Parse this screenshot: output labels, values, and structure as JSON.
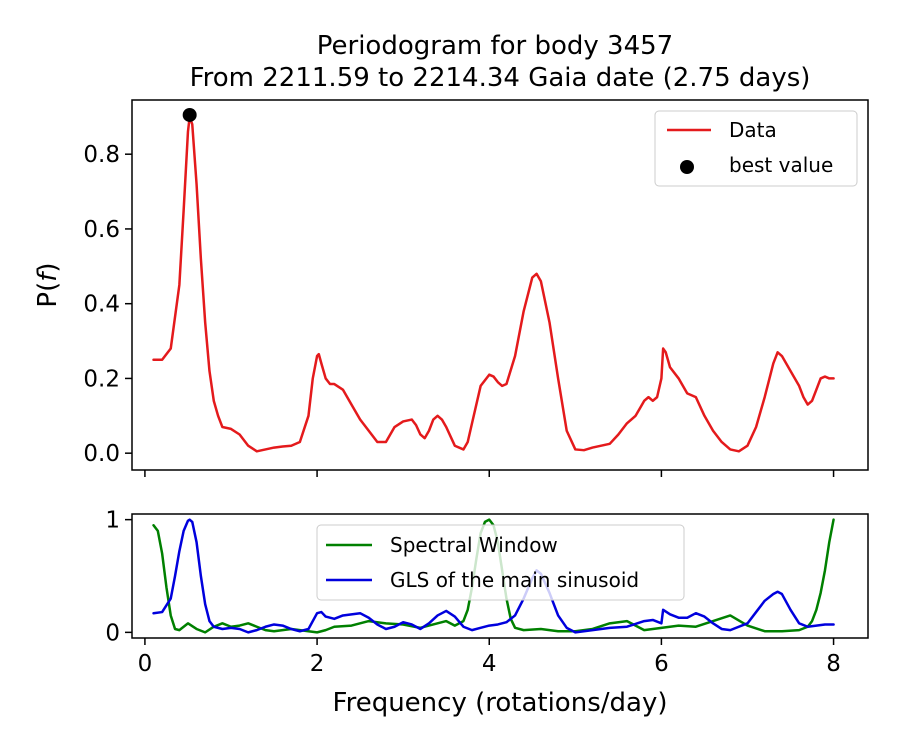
{
  "chart_data": [
    {
      "type": "line",
      "panel": "periodogram",
      "title": "Periodogram for body 3457",
      "subtitle": "From 2211.59 to 2214.34 Gaia date (2.75 days)",
      "xlabel": "",
      "ylabel_prefix": "P(",
      "ylabel_var": "f",
      "ylabel_suffix": ")",
      "xlim": [
        -0.15,
        8.4
      ],
      "ylim": [
        -0.045,
        0.945
      ],
      "yticks": [
        0.0,
        0.2,
        0.4,
        0.6,
        0.8
      ],
      "ytick_labels": [
        "0.0",
        "0.2",
        "0.4",
        "0.6",
        "0.8"
      ],
      "xticks": [
        0,
        2,
        4,
        6,
        8
      ],
      "legend": {
        "position": "top-right",
        "entries": [
          "Data",
          "best value"
        ]
      },
      "series": [
        {
          "name": "Data",
          "color": "#e41a1c",
          "x": [
            0.1,
            0.2,
            0.3,
            0.4,
            0.45,
            0.5,
            0.52,
            0.55,
            0.6,
            0.65,
            0.7,
            0.75,
            0.8,
            0.85,
            0.9,
            1.0,
            1.1,
            1.2,
            1.3,
            1.4,
            1.5,
            1.6,
            1.7,
            1.8,
            1.9,
            1.95,
            2.0,
            2.02,
            2.05,
            2.1,
            2.15,
            2.2,
            2.3,
            2.4,
            2.5,
            2.6,
            2.7,
            2.8,
            2.9,
            3.0,
            3.1,
            3.15,
            3.2,
            3.25,
            3.3,
            3.35,
            3.4,
            3.45,
            3.5,
            3.6,
            3.7,
            3.75,
            3.8,
            3.9,
            4.0,
            4.05,
            4.1,
            4.15,
            4.2,
            4.3,
            4.4,
            4.5,
            4.55,
            4.6,
            4.7,
            4.8,
            4.9,
            5.0,
            5.1,
            5.2,
            5.3,
            5.4,
            5.5,
            5.6,
            5.7,
            5.75,
            5.8,
            5.85,
            5.9,
            5.95,
            6.0,
            6.02,
            6.05,
            6.1,
            6.2,
            6.3,
            6.35,
            6.4,
            6.5,
            6.6,
            6.7,
            6.8,
            6.9,
            7.0,
            7.1,
            7.2,
            7.3,
            7.35,
            7.4,
            7.5,
            7.6,
            7.65,
            7.7,
            7.75,
            7.8,
            7.85,
            7.9,
            7.95,
            8.0
          ],
          "y": [
            0.25,
            0.25,
            0.28,
            0.45,
            0.65,
            0.86,
            0.9,
            0.88,
            0.72,
            0.52,
            0.35,
            0.22,
            0.14,
            0.1,
            0.07,
            0.065,
            0.05,
            0.02,
            0.005,
            0.01,
            0.015,
            0.018,
            0.02,
            0.03,
            0.1,
            0.2,
            0.26,
            0.265,
            0.24,
            0.2,
            0.185,
            0.185,
            0.17,
            0.13,
            0.09,
            0.06,
            0.03,
            0.03,
            0.07,
            0.085,
            0.09,
            0.075,
            0.05,
            0.04,
            0.06,
            0.09,
            0.1,
            0.09,
            0.07,
            0.02,
            0.01,
            0.03,
            0.08,
            0.18,
            0.21,
            0.205,
            0.19,
            0.18,
            0.185,
            0.26,
            0.38,
            0.47,
            0.48,
            0.46,
            0.35,
            0.2,
            0.06,
            0.01,
            0.008,
            0.015,
            0.02,
            0.025,
            0.05,
            0.08,
            0.1,
            0.12,
            0.14,
            0.15,
            0.14,
            0.15,
            0.2,
            0.28,
            0.27,
            0.23,
            0.2,
            0.16,
            0.155,
            0.15,
            0.1,
            0.06,
            0.03,
            0.01,
            0.005,
            0.02,
            0.07,
            0.15,
            0.24,
            0.27,
            0.26,
            0.22,
            0.18,
            0.15,
            0.13,
            0.14,
            0.17,
            0.2,
            0.205,
            0.2,
            0.2
          ]
        }
      ],
      "best_value": {
        "x": 0.52,
        "y": 0.905,
        "color": "#000000"
      }
    },
    {
      "type": "line",
      "panel": "window",
      "title": "",
      "xlabel": "Frequency (rotations/day)",
      "ylabel": "",
      "xlim": [
        -0.15,
        8.4
      ],
      "ylim": [
        -0.05,
        1.05
      ],
      "yticks": [
        0,
        1
      ],
      "ytick_labels": [
        "0",
        "1"
      ],
      "xticks": [
        0,
        2,
        4,
        6,
        8
      ],
      "xtick_labels": [
        "0",
        "2",
        "4",
        "6",
        "8"
      ],
      "legend": {
        "position": "top-center",
        "entries": [
          "Spectral Window",
          "GLS of the main sinusoid"
        ]
      },
      "series": [
        {
          "name": "Spectral Window",
          "color": "#008000",
          "x": [
            0.1,
            0.15,
            0.2,
            0.25,
            0.3,
            0.35,
            0.4,
            0.5,
            0.6,
            0.7,
            0.8,
            0.9,
            1.0,
            1.1,
            1.2,
            1.3,
            1.4,
            1.5,
            1.6,
            1.7,
            1.8,
            1.9,
            2.0,
            2.1,
            2.2,
            2.4,
            2.6,
            2.8,
            3.0,
            3.2,
            3.4,
            3.5,
            3.6,
            3.7,
            3.75,
            3.8,
            3.85,
            3.9,
            3.95,
            4.0,
            4.05,
            4.1,
            4.15,
            4.2,
            4.25,
            4.3,
            4.4,
            4.6,
            4.8,
            5.0,
            5.2,
            5.4,
            5.6,
            5.8,
            6.0,
            6.2,
            6.4,
            6.6,
            6.8,
            7.0,
            7.2,
            7.4,
            7.6,
            7.7,
            7.75,
            7.8,
            7.85,
            7.9,
            7.95,
            8.0
          ],
          "y": [
            0.95,
            0.9,
            0.7,
            0.4,
            0.15,
            0.03,
            0.02,
            0.08,
            0.03,
            0.0,
            0.05,
            0.08,
            0.05,
            0.06,
            0.08,
            0.05,
            0.02,
            0.01,
            0.02,
            0.03,
            0.02,
            0.01,
            0.0,
            0.02,
            0.05,
            0.06,
            0.1,
            0.08,
            0.07,
            0.04,
            0.08,
            0.1,
            0.06,
            0.1,
            0.2,
            0.4,
            0.65,
            0.88,
            0.98,
            1.0,
            0.95,
            0.8,
            0.55,
            0.3,
            0.12,
            0.04,
            0.02,
            0.03,
            0.01,
            0.01,
            0.03,
            0.08,
            0.1,
            0.02,
            0.04,
            0.06,
            0.05,
            0.1,
            0.15,
            0.06,
            0.01,
            0.01,
            0.02,
            0.05,
            0.1,
            0.2,
            0.35,
            0.55,
            0.8,
            1.0
          ]
        },
        {
          "name": "GLS of the main sinusoid",
          "color": "#0000dd",
          "x": [
            0.1,
            0.2,
            0.3,
            0.35,
            0.4,
            0.45,
            0.5,
            0.52,
            0.55,
            0.6,
            0.65,
            0.7,
            0.75,
            0.8,
            0.9,
            1.0,
            1.1,
            1.2,
            1.3,
            1.4,
            1.5,
            1.6,
            1.7,
            1.8,
            1.9,
            2.0,
            2.05,
            2.1,
            2.2,
            2.3,
            2.4,
            2.5,
            2.6,
            2.7,
            2.8,
            2.9,
            3.0,
            3.1,
            3.2,
            3.3,
            3.4,
            3.5,
            3.6,
            3.7,
            3.8,
            3.9,
            4.0,
            4.1,
            4.2,
            4.3,
            4.4,
            4.5,
            4.55,
            4.6,
            4.7,
            4.8,
            4.9,
            5.0,
            5.2,
            5.4,
            5.6,
            5.8,
            5.9,
            6.0,
            6.02,
            6.1,
            6.2,
            6.3,
            6.4,
            6.5,
            6.6,
            6.7,
            6.8,
            7.0,
            7.1,
            7.2,
            7.3,
            7.35,
            7.4,
            7.5,
            7.6,
            7.7,
            7.8,
            7.9,
            8.0
          ],
          "y": [
            0.17,
            0.18,
            0.3,
            0.5,
            0.72,
            0.9,
            0.99,
            1.0,
            0.98,
            0.8,
            0.5,
            0.25,
            0.1,
            0.05,
            0.03,
            0.04,
            0.03,
            0.0,
            0.02,
            0.05,
            0.07,
            0.06,
            0.03,
            0.01,
            0.03,
            0.17,
            0.18,
            0.14,
            0.12,
            0.15,
            0.16,
            0.17,
            0.13,
            0.07,
            0.03,
            0.05,
            0.09,
            0.07,
            0.03,
            0.08,
            0.15,
            0.19,
            0.14,
            0.05,
            0.02,
            0.04,
            0.06,
            0.07,
            0.09,
            0.15,
            0.3,
            0.48,
            0.55,
            0.52,
            0.35,
            0.15,
            0.04,
            0.0,
            0.02,
            0.04,
            0.05,
            0.1,
            0.11,
            0.08,
            0.2,
            0.16,
            0.13,
            0.13,
            0.17,
            0.14,
            0.08,
            0.03,
            0.02,
            0.08,
            0.18,
            0.28,
            0.34,
            0.36,
            0.34,
            0.2,
            0.08,
            0.05,
            0.06,
            0.07,
            0.07
          ]
        }
      ]
    }
  ]
}
